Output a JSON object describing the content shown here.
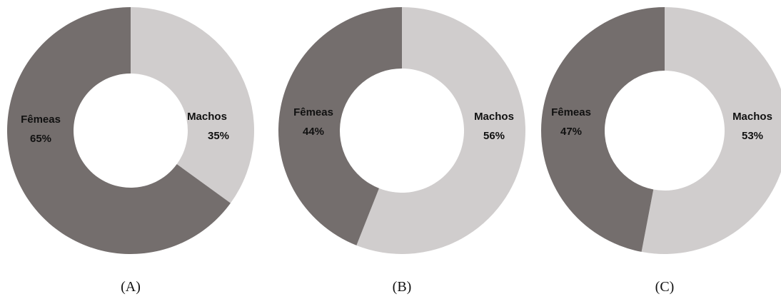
{
  "chart_data": [
    {
      "type": "pie",
      "style": "donut",
      "caption": "(A)",
      "slices": [
        {
          "label": "Machos",
          "value": 35,
          "value_label": "35%",
          "color": "#d0cdcd"
        },
        {
          "label": "Fêmeas",
          "value": 65,
          "value_label": "65%",
          "color": "#746e6d"
        }
      ]
    },
    {
      "type": "pie",
      "style": "donut",
      "caption": "(B)",
      "slices": [
        {
          "label": "Machos",
          "value": 56,
          "value_label": "56%",
          "color": "#d0cdcd"
        },
        {
          "label": "Fêmeas",
          "value": 44,
          "value_label": "44%",
          "color": "#746e6d"
        }
      ]
    },
    {
      "type": "pie",
      "style": "donut",
      "caption": "(C)",
      "slices": [
        {
          "label": "Machos",
          "value": 53,
          "value_label": "53%",
          "color": "#d0cdcd"
        },
        {
          "label": "Fêmeas",
          "value": 47,
          "value_label": "47%",
          "color": "#746e6d"
        }
      ]
    }
  ]
}
